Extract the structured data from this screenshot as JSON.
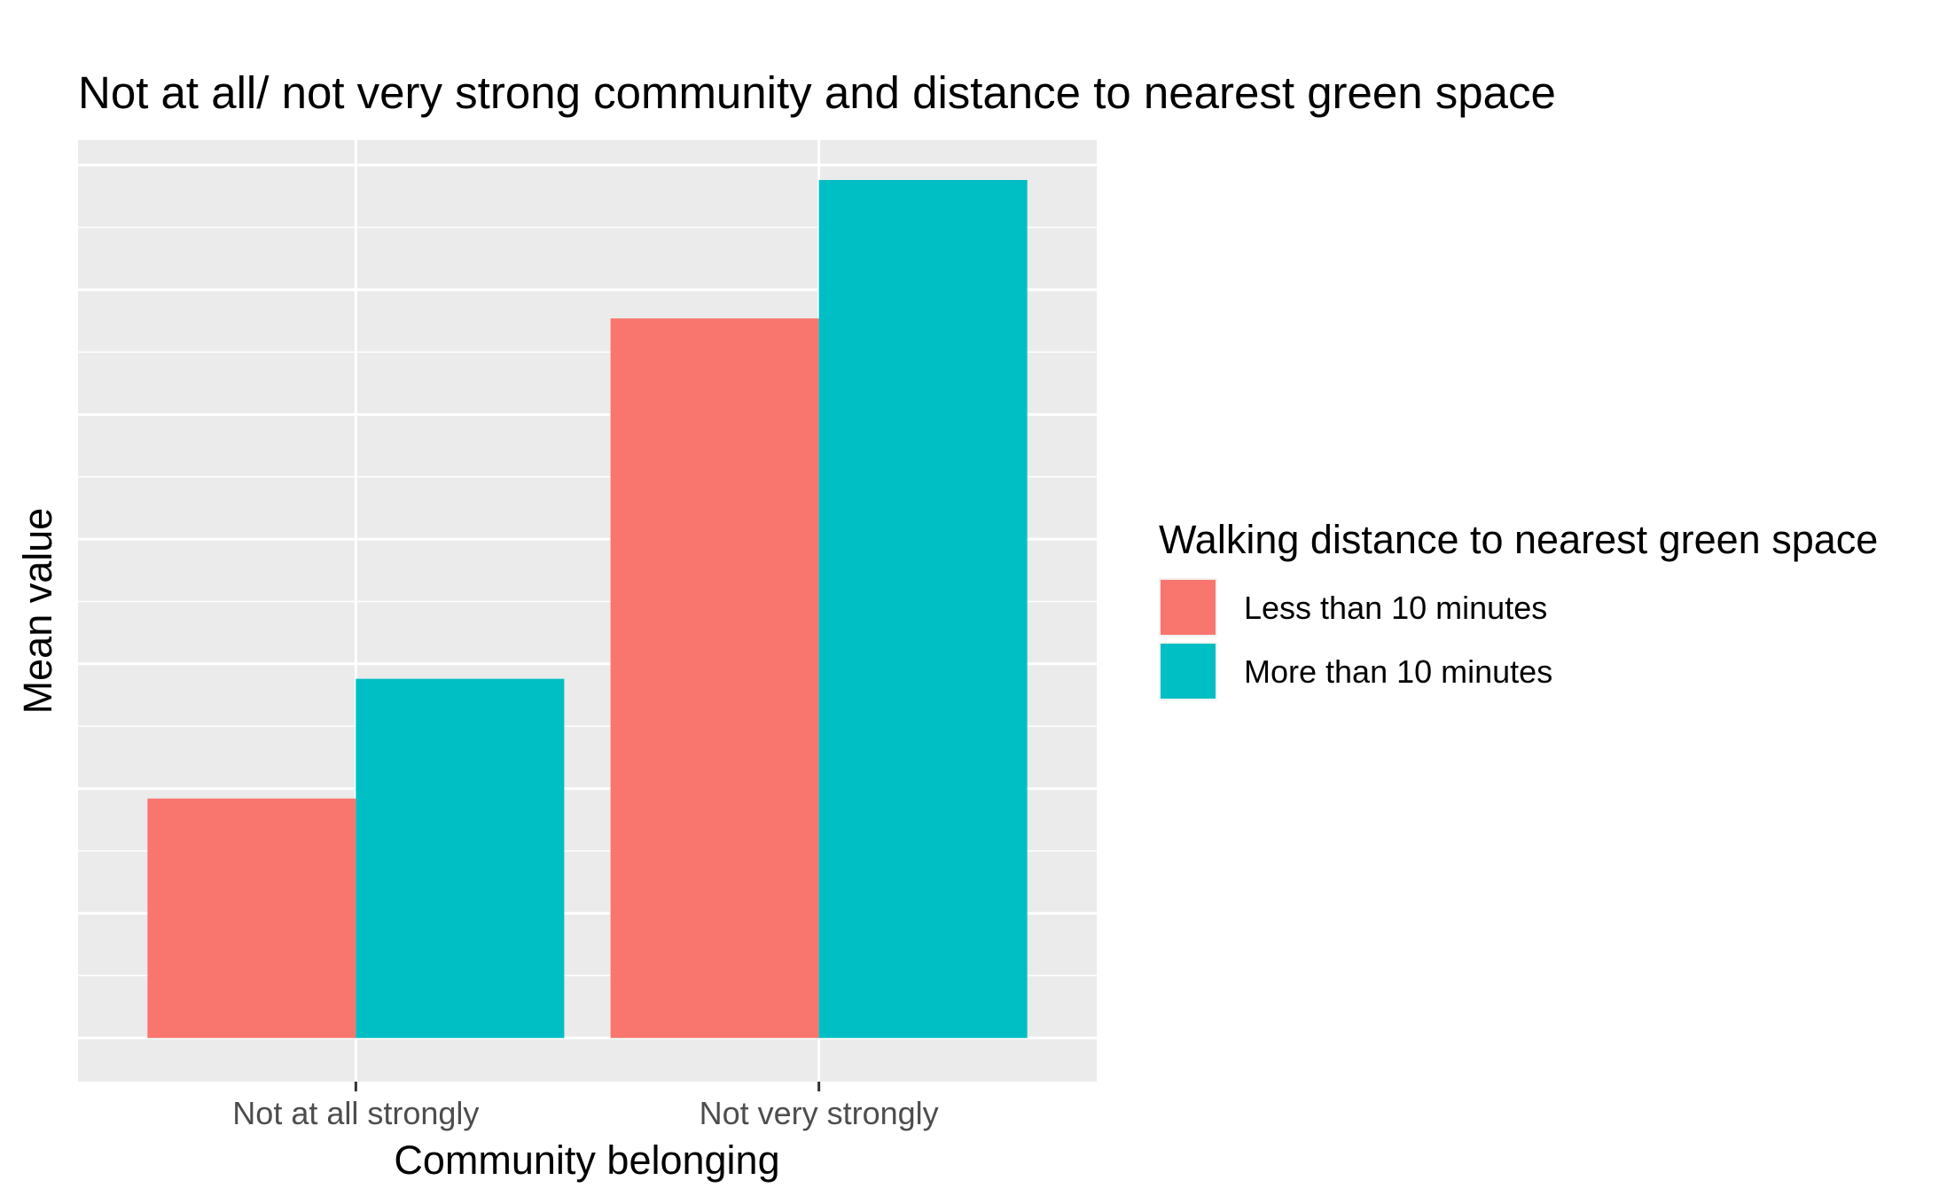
{
  "chart_data": {
    "type": "bar",
    "title": "Not at all/ not very strong community and distance to nearest green space",
    "xlabel": "Community belonging",
    "ylabel": "Mean value",
    "categories": [
      "Not at all strongly",
      "Not very strongly"
    ],
    "series": [
      {
        "name": "Less than 10 minutes",
        "color": "#F8766D",
        "values": [
          1.92,
          5.77
        ]
      },
      {
        "name": "More than 10 minutes",
        "color": "#00BFC4",
        "values": [
          2.88,
          6.88
        ]
      }
    ],
    "ylim": [
      -0.35,
      7.2
    ],
    "y_tick_labels_shown": false,
    "grid": true,
    "panel_background": "#EBEBEB",
    "legend": {
      "title": "Walking distance to nearest green space",
      "position": "right"
    }
  }
}
